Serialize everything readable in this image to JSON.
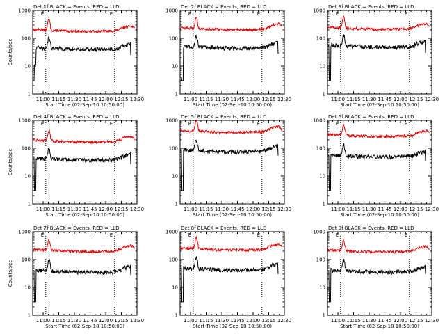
{
  "colors": {
    "events": "#000000",
    "lld": "#e00000",
    "frame": "#000000",
    "background": "#ffffff"
  },
  "layout": {
    "rows": 3,
    "cols": 3
  },
  "time_axis": {
    "start_min": 0,
    "end_min": 100,
    "tick_minutes": [
      10,
      25,
      40,
      55,
      70,
      85,
      100
    ],
    "tick_labels": [
      "11:00",
      "11:15",
      "11:30",
      "11:45",
      "12:00",
      "12:15",
      "12:30"
    ],
    "xlabel": "Start Time (02-Sep-10 10:50:00)"
  },
  "y_axis": {
    "scale": "log",
    "ylim": [
      1,
      1000
    ],
    "tick_values": [
      1,
      10,
      100,
      1000
    ],
    "tick_labels": [
      "1",
      "10",
      "100",
      "1000"
    ],
    "ylabel": "Counts/sec"
  },
  "markers": {
    "vlines_min": [
      12.5,
      78.5
    ],
    "flag_left": "E",
    "flag_right": "E"
  },
  "chart_data": [
    {
      "type": "line",
      "title": "Det 1f BLACK = Events, RED = LLD",
      "ylabel_shown": true,
      "events_level": 45,
      "lld_level": 200,
      "events_start": 11,
      "events_end": 25,
      "events_first": 3
    },
    {
      "type": "line",
      "title": "Det 2f BLACK = Events, RED = LLD",
      "ylabel_shown": false,
      "events_level": 50,
      "lld_level": 230,
      "events_start": 3,
      "events_end": 28,
      "events_first": 4
    },
    {
      "type": "line",
      "title": "Det 3f BLACK = Events, RED = LLD",
      "ylabel_shown": false,
      "events_level": 55,
      "lld_level": 240,
      "events_start": 3,
      "events_end": 30,
      "events_first": 55
    },
    {
      "type": "line",
      "title": "Det 4f BLACK = Events, RED = LLD",
      "ylabel_shown": true,
      "events_level": 42,
      "lld_level": 190,
      "events_start": 3,
      "events_end": 27,
      "events_first": 45
    },
    {
      "type": "line",
      "title": "Det 5f BLACK = Events, RED = LLD",
      "ylabel_shown": false,
      "events_level": 85,
      "lld_level": 420,
      "events_start": 3,
      "events_end": 55,
      "events_first": 85
    },
    {
      "type": "line",
      "title": "Det 6f BLACK = Events, RED = LLD",
      "ylabel_shown": false,
      "events_level": 55,
      "lld_level": 300,
      "events_start": 3,
      "events_end": 35,
      "events_first": 55
    },
    {
      "type": "line",
      "title": "Det 7f BLACK = Events, RED = LLD",
      "ylabel_shown": true,
      "events_level": 40,
      "lld_level": 220,
      "events_start": 3,
      "events_end": 28,
      "events_first": 40
    },
    {
      "type": "line",
      "title": "Det 8f BLACK = Events, RED = LLD",
      "ylabel_shown": false,
      "events_level": 48,
      "lld_level": 250,
      "events_start": 3,
      "events_end": 30,
      "events_first": 48
    },
    {
      "type": "line",
      "title": "Det 9f BLACK = Events, RED = LLD",
      "ylabel_shown": false,
      "events_level": 40,
      "lld_level": 210,
      "events_start": 3,
      "events_end": 30,
      "events_first": 40
    }
  ]
}
